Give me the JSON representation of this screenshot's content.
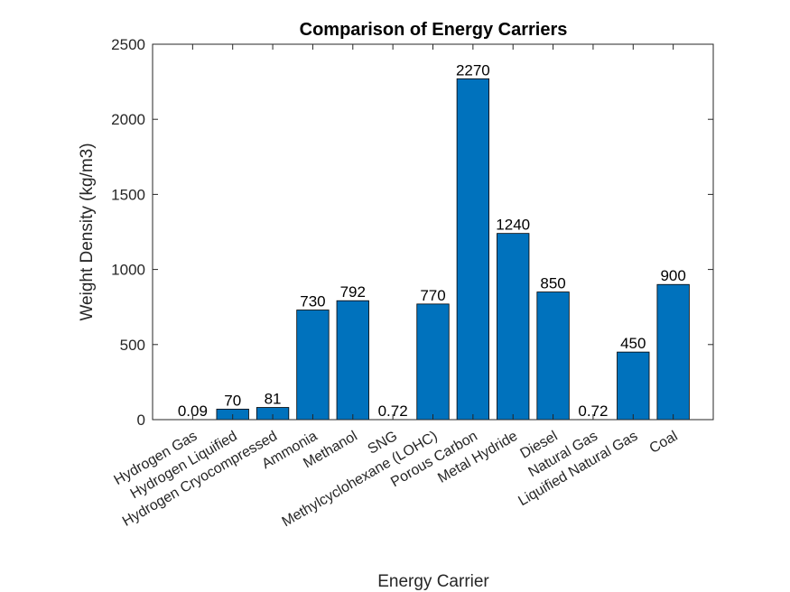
{
  "chart_data": {
    "type": "bar",
    "title": "Comparison of Energy Carriers",
    "xlabel": "Energy Carrier",
    "ylabel": "Weight Density (kg/m3)",
    "categories": [
      "Hydrogen Gas",
      "Hydrogen Liquified",
      "Hydrogen Cryocompressed",
      "Ammonia",
      "Methanol",
      "SNG",
      "Methylcyclohexane (LOHC)",
      "Porous Carbon",
      "Metal Hydride",
      "Diesel",
      "Natural Gas",
      "Liquified Natural Gas",
      "Coal"
    ],
    "values": [
      0.09,
      70,
      81,
      730,
      792,
      0.72,
      770,
      2270,
      1240,
      850,
      0.72,
      450,
      900
    ],
    "data_labels": [
      "0.09",
      "70",
      "81",
      "730",
      "792",
      "0.72",
      "770",
      "2270",
      "1240",
      "850",
      "0.72",
      "450",
      "900"
    ],
    "yticks": [
      0,
      500,
      1000,
      1500,
      2000,
      2500
    ],
    "ylim": [
      0,
      2500
    ],
    "grid": false,
    "bar_color": "#0072BD"
  }
}
